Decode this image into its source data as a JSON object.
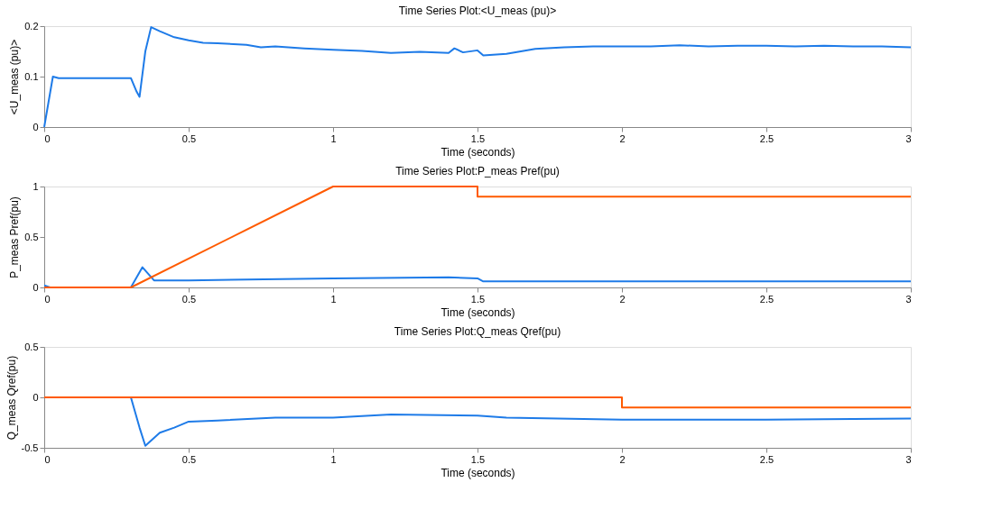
{
  "chart_data": [
    {
      "type": "line",
      "title": "Time Series Plot:<U_meas (pu)>",
      "xlabel": "Time (seconds)",
      "ylabel": "<U_meas (pu)>",
      "xlim": [
        0,
        3
      ],
      "xticks": [
        0,
        0.5,
        1,
        1.5,
        2,
        2.5,
        3
      ],
      "ylim": [
        0,
        0.2
      ],
      "yticks": [
        0,
        0.1,
        0.2
      ],
      "grid": false,
      "series": [
        {
          "color": "#1e7be8",
          "x": [
            0,
            0.03,
            0.05,
            0.3,
            0.32,
            0.33,
            0.35,
            0.37,
            0.4,
            0.45,
            0.5,
            0.55,
            0.6,
            0.7,
            0.75,
            0.8,
            0.9,
            1.0,
            1.1,
            1.2,
            1.3,
            1.4,
            1.42,
            1.45,
            1.5,
            1.52,
            1.6,
            1.7,
            1.8,
            1.9,
            2.0,
            2.1,
            2.2,
            2.3,
            2.4,
            2.5,
            2.6,
            2.7,
            2.8,
            2.9,
            3.0
          ],
          "values": [
            0,
            0.1,
            0.097,
            0.097,
            0.07,
            0.06,
            0.15,
            0.198,
            0.19,
            0.178,
            0.172,
            0.167,
            0.166,
            0.163,
            0.158,
            0.16,
            0.156,
            0.153,
            0.151,
            0.147,
            0.149,
            0.147,
            0.156,
            0.148,
            0.152,
            0.142,
            0.145,
            0.155,
            0.158,
            0.16,
            0.16,
            0.16,
            0.162,
            0.16,
            0.161,
            0.161,
            0.16,
            0.161,
            0.16,
            0.16,
            0.158
          ]
        }
      ]
    },
    {
      "type": "line",
      "title": "Time Series Plot:P_meas Pref(pu)",
      "xlabel": "Time (seconds)",
      "ylabel": "P_meas Pref(pu)",
      "xlim": [
        0,
        3
      ],
      "xticks": [
        0,
        0.5,
        1,
        1.5,
        2,
        2.5,
        3
      ],
      "ylim": [
        0,
        1
      ],
      "yticks": [
        0,
        0.5,
        1
      ],
      "grid": false,
      "series": [
        {
          "color": "#1e7be8",
          "x": [
            0,
            0.02,
            0.3,
            0.34,
            0.38,
            0.5,
            1.0,
            1.4,
            1.5,
            1.52,
            3.0
          ],
          "values": [
            0.02,
            0,
            0,
            0.2,
            0.07,
            0.07,
            0.09,
            0.1,
            0.09,
            0.06,
            0.06
          ]
        },
        {
          "color": "#ff5a00",
          "x": [
            0,
            0.3,
            1.0,
            1.5,
            1.5,
            3.0
          ],
          "values": [
            0,
            0,
            1,
            1,
            0.9,
            0.9
          ]
        }
      ]
    },
    {
      "type": "line",
      "title": "Time Series Plot:Q_meas Qref(pu)",
      "xlabel": "Time (seconds)",
      "ylabel": "Q_meas Qref(pu)",
      "xlim": [
        0,
        3
      ],
      "xticks": [
        0,
        0.5,
        1,
        1.5,
        2,
        2.5,
        3
      ],
      "ylim": [
        -0.5,
        0.5
      ],
      "yticks": [
        -0.5,
        0,
        0.5
      ],
      "grid": false,
      "series": [
        {
          "color": "#1e7be8",
          "x": [
            0,
            0.3,
            0.33,
            0.35,
            0.4,
            0.45,
            0.5,
            0.6,
            0.8,
            1.0,
            1.2,
            1.5,
            1.6,
            2.0,
            2.5,
            3.0
          ],
          "values": [
            0,
            0,
            -0.3,
            -0.48,
            -0.35,
            -0.3,
            -0.24,
            -0.23,
            -0.2,
            -0.2,
            -0.17,
            -0.18,
            -0.2,
            -0.22,
            -0.22,
            -0.21
          ]
        },
        {
          "color": "#ff5a00",
          "x": [
            0,
            2.0,
            2.0,
            3.0
          ],
          "values": [
            0,
            0,
            -0.1,
            -0.1
          ]
        }
      ]
    }
  ]
}
